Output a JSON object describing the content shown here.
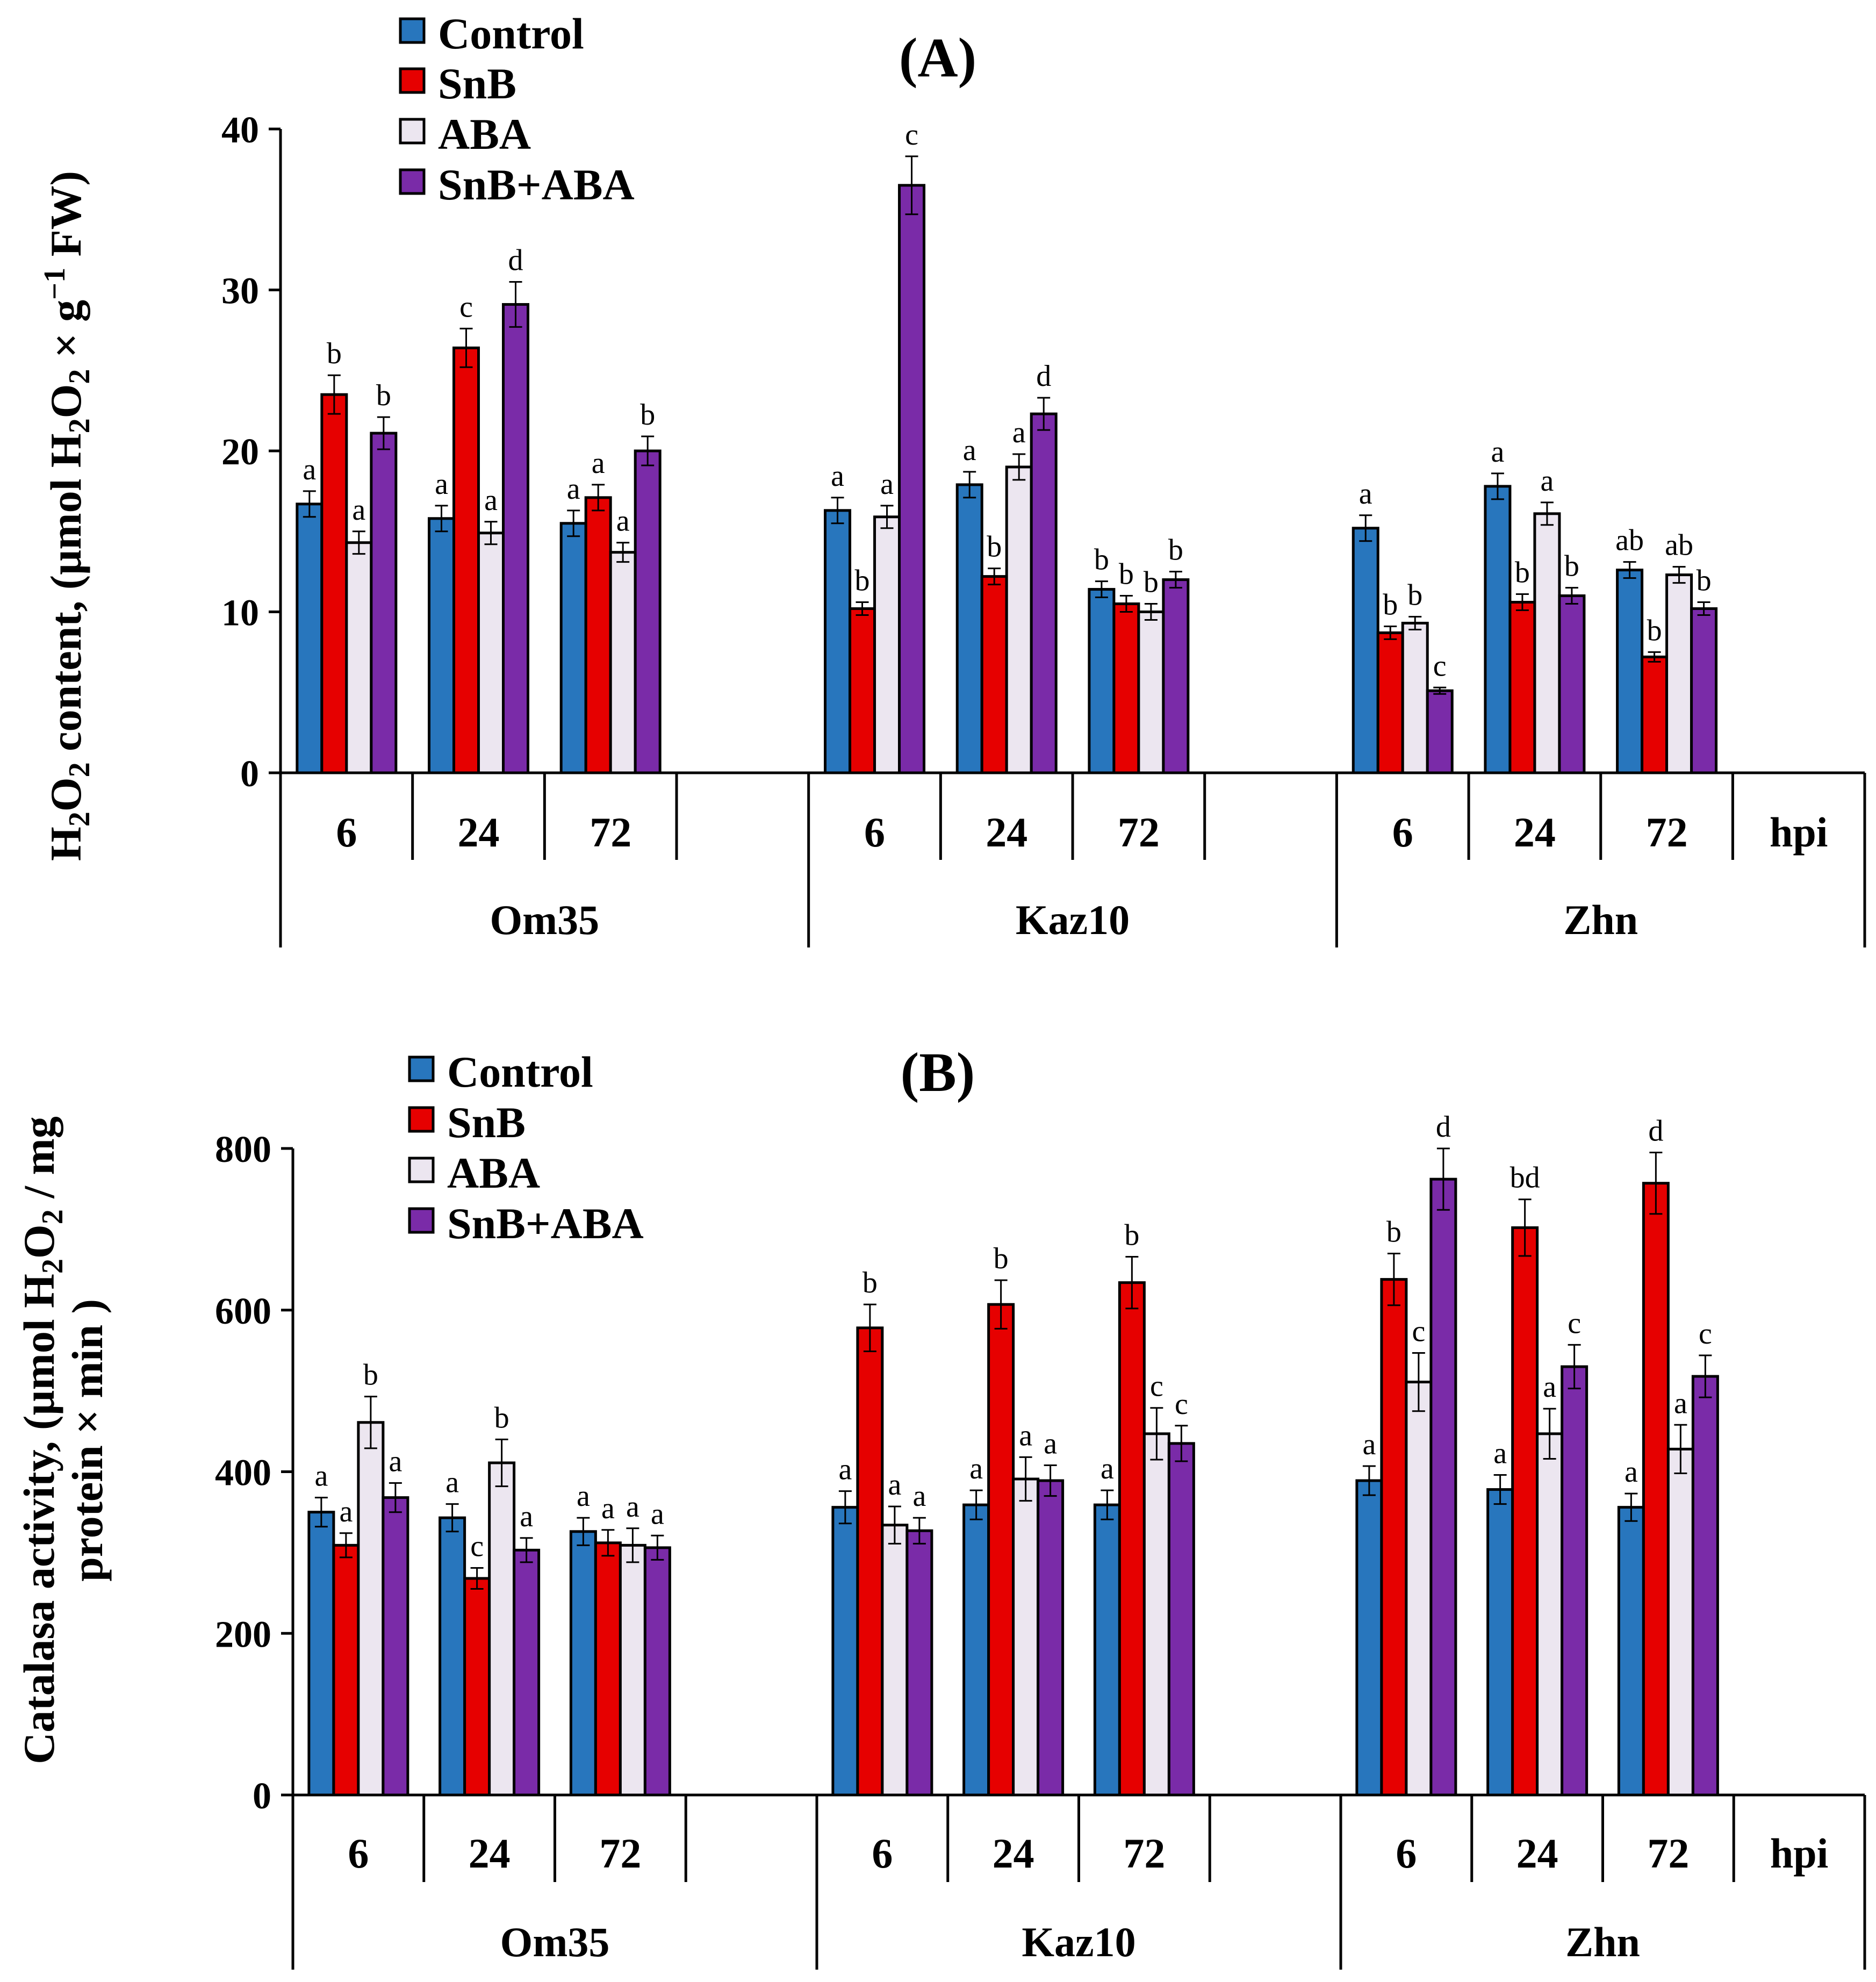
{
  "colors": {
    "Control": "#2876BD",
    "SnB": "#E60000",
    "ABA": "#ECE6F0",
    "SnB+ABA": "#7A2BA8",
    "axis": "#000000"
  },
  "chart_data": [
    {
      "id": "A",
      "type": "bar",
      "title": "(A)",
      "ylabel_parts": [
        "H",
        "2",
        "O",
        "2",
        " content, (µmol H",
        "2",
        "O",
        "2",
        " × g",
        "−1",
        " FW)"
      ],
      "ylim": [
        0,
        40
      ],
      "yticks": [
        0,
        10,
        20,
        30,
        40
      ],
      "legend": [
        "Control",
        "SnB",
        "ABA",
        "SnB+ABA"
      ],
      "groups": [
        "Om35",
        "Kaz10",
        "Zhn"
      ],
      "times": [
        "6",
        "24",
        "72"
      ],
      "time_unit_label": "hpi",
      "series": [
        {
          "name": "Control",
          "values": [
            [
              16.7,
              15.8,
              15.5
            ],
            [
              16.3,
              17.9,
              11.4
            ],
            [
              15.2,
              17.8,
              12.6
            ]
          ],
          "errors": [
            [
              0.8,
              0.8,
              0.8
            ],
            [
              0.8,
              0.8,
              0.5
            ],
            [
              0.8,
              0.8,
              0.5
            ]
          ],
          "letters": [
            [
              "a",
              "a",
              "a"
            ],
            [
              "a",
              "a",
              "b"
            ],
            [
              "a",
              "a",
              "ab"
            ]
          ]
        },
        {
          "name": "SnB",
          "values": [
            [
              23.5,
              26.4,
              17.1
            ],
            [
              10.2,
              12.2,
              10.5
            ],
            [
              8.7,
              10.6,
              7.2
            ]
          ],
          "errors": [
            [
              1.2,
              1.2,
              0.8
            ],
            [
              0.4,
              0.5,
              0.5
            ],
            [
              0.4,
              0.5,
              0.3
            ]
          ],
          "letters": [
            [
              "b",
              "c",
              "a"
            ],
            [
              "b",
              "b",
              "b"
            ],
            [
              "b",
              "b",
              "b"
            ]
          ]
        },
        {
          "name": "ABA",
          "values": [
            [
              14.3,
              14.9,
              13.7
            ],
            [
              15.9,
              19.0,
              10.0
            ],
            [
              9.3,
              16.1,
              12.3
            ]
          ],
          "errors": [
            [
              0.7,
              0.7,
              0.6
            ],
            [
              0.7,
              0.8,
              0.5
            ],
            [
              0.4,
              0.7,
              0.5
            ]
          ],
          "letters": [
            [
              "a",
              "a",
              "a"
            ],
            [
              "a",
              "a",
              "b"
            ],
            [
              "b",
              "a",
              "ab"
            ]
          ]
        },
        {
          "name": "SnB+ABA",
          "values": [
            [
              21.1,
              29.1,
              20.0
            ],
            [
              36.5,
              22.3,
              12.0
            ],
            [
              5.1,
              11.0,
              10.2
            ]
          ],
          "errors": [
            [
              1.0,
              1.4,
              0.9
            ],
            [
              1.8,
              1.0,
              0.5
            ],
            [
              0.2,
              0.5,
              0.4
            ]
          ],
          "letters": [
            [
              "b",
              "d",
              "b"
            ],
            [
              "c",
              "d",
              "b"
            ],
            [
              "c",
              "b",
              "b"
            ]
          ]
        }
      ]
    },
    {
      "id": "B",
      "type": "bar",
      "title": "(B)",
      "ylabel_line1_parts": [
        "Catalasa activity, (µmol H",
        "2",
        "O",
        "2",
        " / mg"
      ],
      "ylabel_line2": "protein × min )",
      "ylim": [
        0,
        800
      ],
      "yticks": [
        0,
        200,
        400,
        600,
        800
      ],
      "legend": [
        "Control",
        "SnB",
        "ABA",
        "SnB+ABA"
      ],
      "groups": [
        "Om35",
        "Kaz10",
        "Zhn"
      ],
      "times": [
        "6",
        "24",
        "72"
      ],
      "time_unit_label": "hpi",
      "series": [
        {
          "name": "Control",
          "values": [
            [
              350,
              343,
              326
            ],
            [
              356,
              359,
              359
            ],
            [
              389,
              378,
              356
            ]
          ],
          "errors": [
            [
              18,
              17,
              17
            ],
            [
              20,
              18,
              18
            ],
            [
              18,
              18,
              17
            ]
          ],
          "letters": [
            [
              "a",
              "a",
              "a"
            ],
            [
              "a",
              "a",
              "a"
            ],
            [
              "a",
              "a",
              "a"
            ]
          ]
        },
        {
          "name": "SnB",
          "values": [
            [
              309,
              268,
              312
            ],
            [
              578,
              607,
              634
            ],
            [
              638,
              702,
              757
            ]
          ],
          "errors": [
            [
              15,
              13,
              16
            ],
            [
              29,
              30,
              32
            ],
            [
              32,
              35,
              38
            ]
          ],
          "letters": [
            [
              "a",
              "c",
              "a"
            ],
            [
              "b",
              "b",
              "b"
            ],
            [
              "b",
              "bd",
              "d"
            ]
          ]
        },
        {
          "name": "ABA",
          "values": [
            [
              461,
              411,
              309
            ],
            [
              334,
              391,
              447
            ],
            [
              511,
              447,
              428
            ]
          ],
          "errors": [
            [
              32,
              29,
              21
            ],
            [
              23,
              27,
              32
            ],
            [
              36,
              31,
              30
            ]
          ],
          "letters": [
            [
              "b",
              "b",
              "a"
            ],
            [
              "a",
              "a",
              "c"
            ],
            [
              "c",
              "a",
              "a"
            ]
          ]
        },
        {
          "name": "SnB+ABA",
          "values": [
            [
              368,
              303,
              306
            ],
            [
              327,
              389,
              435
            ],
            [
              762,
              530,
              518
            ]
          ],
          "errors": [
            [
              18,
              15,
              15
            ],
            [
              16,
              19,
              22
            ],
            [
              38,
              27,
              26
            ]
          ],
          "letters": [
            [
              "a",
              "a",
              "a"
            ],
            [
              "a",
              "a",
              "c"
            ],
            [
              "d",
              "c",
              "c"
            ]
          ]
        }
      ]
    }
  ]
}
